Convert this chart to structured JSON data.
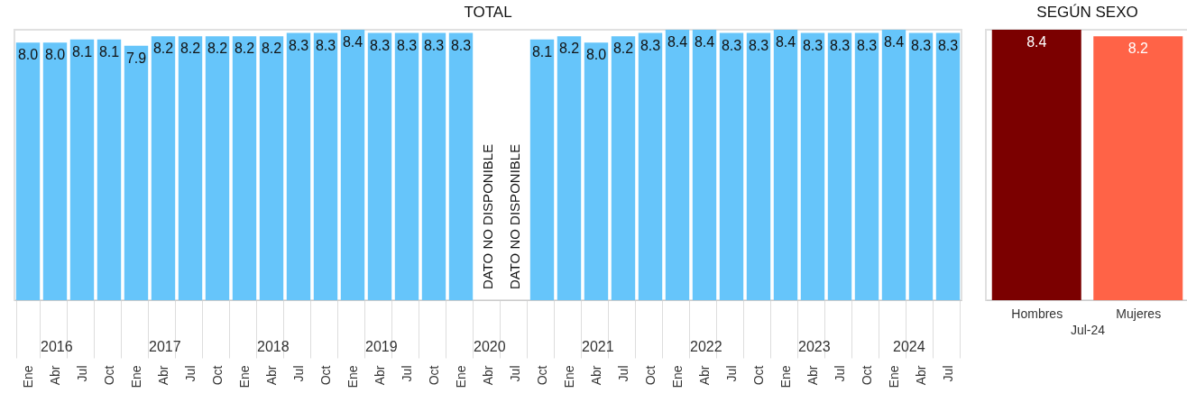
{
  "chart_data": [
    {
      "type": "bar",
      "title": "TOTAL",
      "categories": [
        "Ene",
        "Abr",
        "Jul",
        "Oct",
        "Ene",
        "Abr",
        "Jul",
        "Oct",
        "Ene",
        "Abr",
        "Jul",
        "Oct",
        "Ene",
        "Abr",
        "Jul",
        "Oct",
        "Ene",
        "Abr",
        "Jul",
        "Oct",
        "Ene",
        "Abr",
        "Jul",
        "Oct",
        "Ene",
        "Abr",
        "Jul",
        "Oct",
        "Ene",
        "Abr",
        "Jul",
        "Oct",
        "Ene",
        "Abr",
        "Jul"
      ],
      "values": [
        8.0,
        8.0,
        8.1,
        8.1,
        7.9,
        8.2,
        8.2,
        8.2,
        8.2,
        8.2,
        8.3,
        8.3,
        8.4,
        8.3,
        8.3,
        8.3,
        8.3,
        null,
        null,
        8.1,
        8.2,
        8.0,
        8.2,
        8.3,
        8.4,
        8.4,
        8.3,
        8.3,
        8.4,
        8.3,
        8.3,
        8.3,
        8.4,
        8.3,
        8.3
      ],
      "color": "#66c5fa",
      "value_labels": [
        "8.0",
        "8.0",
        "8.1",
        "8.1",
        "7.9",
        "8.2",
        "8.2",
        "8.2",
        "8.2",
        "8.2",
        "8.3",
        "8.3",
        "8.4",
        "8.3",
        "8.3",
        "8.3",
        "8.3",
        null,
        null,
        "8.1",
        "8.2",
        "8.0",
        "8.2",
        "8.3",
        "8.4",
        "8.4",
        "8.3",
        "8.3",
        "8.4",
        "8.3",
        "8.3",
        "8.3",
        "8.4",
        "8.3",
        "8.3"
      ],
      "annotations": [
        "DATO NO DISPONIBLE",
        "DATO NO DISPONIBLE",
        "2016",
        "2017",
        "2018",
        "2019",
        "2020",
        "2021",
        "2022",
        "2023",
        "2024"
      ]
    },
    {
      "type": "bar",
      "title": "SEGÚN SEXO",
      "xlabel": "Jul-24",
      "categories": [
        "Hombres",
        "Mujeres"
      ],
      "values": [
        8.4,
        8.2
      ],
      "colors": [
        "#7b0000",
        "#ff6347"
      ],
      "data_labels": true
    }
  ]
}
